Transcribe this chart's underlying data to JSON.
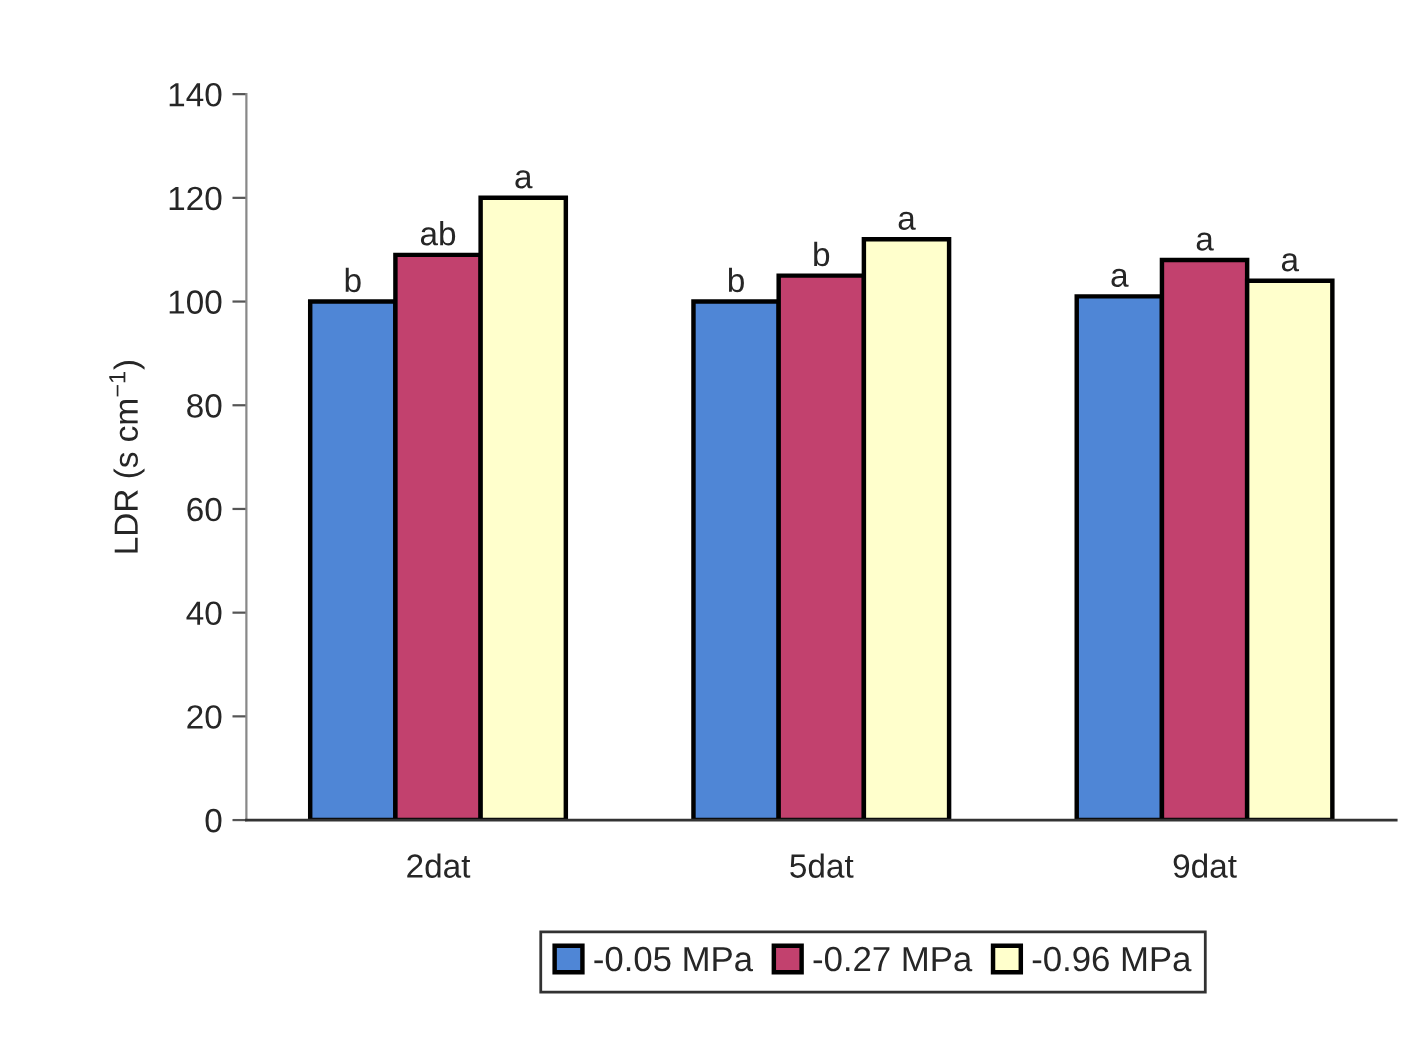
{
  "chart_data": {
    "type": "bar",
    "ylabel": "LDR (s cm$^{−1}$)",
    "categories": [
      "2dat",
      "5dat",
      "9dat"
    ],
    "series": [
      {
        "name": "-0.05 MPa",
        "color": "#4f86d6",
        "values": [
          100,
          100,
          101
        ],
        "value_labels": [
          "b",
          "b",
          "a"
        ]
      },
      {
        "name": "-0.27 MPa",
        "color": "#c2416e",
        "values": [
          109,
          105,
          108
        ],
        "value_labels": [
          "ab",
          "b",
          "a"
        ]
      },
      {
        "name": "-0.96 MPa",
        "color": "#ffffcc",
        "values": [
          120,
          112,
          104
        ],
        "value_labels": [
          "a",
          "a",
          "a"
        ]
      }
    ],
    "ylim": [
      0,
      140
    ],
    "yticks": [
      0,
      20,
      40,
      60,
      80,
      100,
      120,
      140
    ],
    "legend": "bottom"
  }
}
